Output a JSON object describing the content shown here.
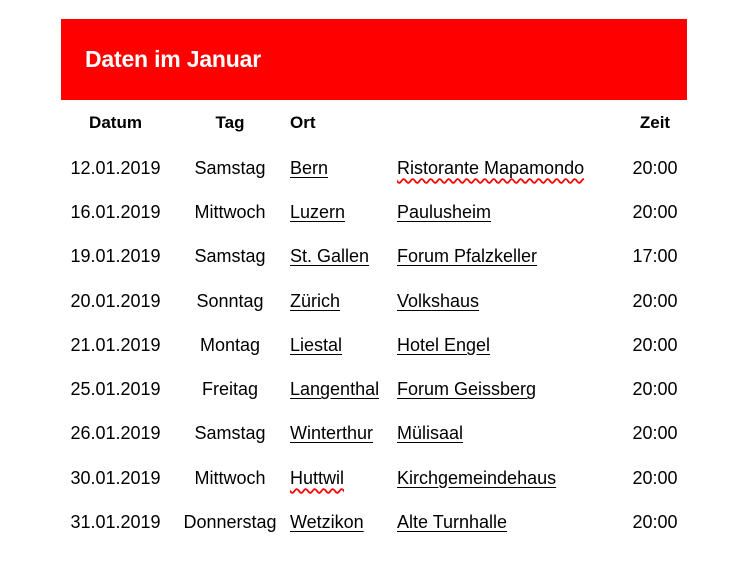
{
  "banner": {
    "title": "Daten im Januar",
    "color": "#ff0000"
  },
  "table": {
    "headers": {
      "date": "Datum",
      "day": "Tag",
      "city": "Ort",
      "venue": "",
      "time": "Zeit"
    },
    "rows": [
      {
        "date": "12.01.2019",
        "day": "Samstag",
        "city": "Bern",
        "venue": "Ristorante Mapamondo",
        "time": "20:00"
      },
      {
        "date": "16.01.2019",
        "day": "Mittwoch",
        "city": "Luzern",
        "venue": "Paulusheim",
        "time": "20:00"
      },
      {
        "date": "19.01.2019",
        "day": "Samstag",
        "city": "St. Gallen",
        "venue": "Forum Pfalzkeller",
        "time": "17:00"
      },
      {
        "date": "20.01.2019",
        "day": "Sonntag",
        "city": "Zürich",
        "venue": "Volkshaus",
        "time": "20:00"
      },
      {
        "date": "21.01.2019",
        "day": "Montag",
        "city": "Liestal",
        "venue": "Hotel Engel",
        "time": "20:00"
      },
      {
        "date": "25.01.2019",
        "day": "Freitag",
        "city": "Langenthal",
        "venue": "Forum Geissberg",
        "time": "20:00"
      },
      {
        "date": "26.01.2019",
        "day": "Samstag",
        "city": "Winterthur",
        "venue": "Mülisaal",
        "time": "20:00"
      },
      {
        "date": "30.01.2019",
        "day": "Mittwoch",
        "city": "Huttwil",
        "venue": "Kirchgemeindehaus",
        "time": "20:00"
      },
      {
        "date": "31.01.2019",
        "day": "Donnerstag",
        "city": "Wetzikon",
        "venue": "Alte Turnhalle",
        "time": "20:00"
      }
    ]
  }
}
